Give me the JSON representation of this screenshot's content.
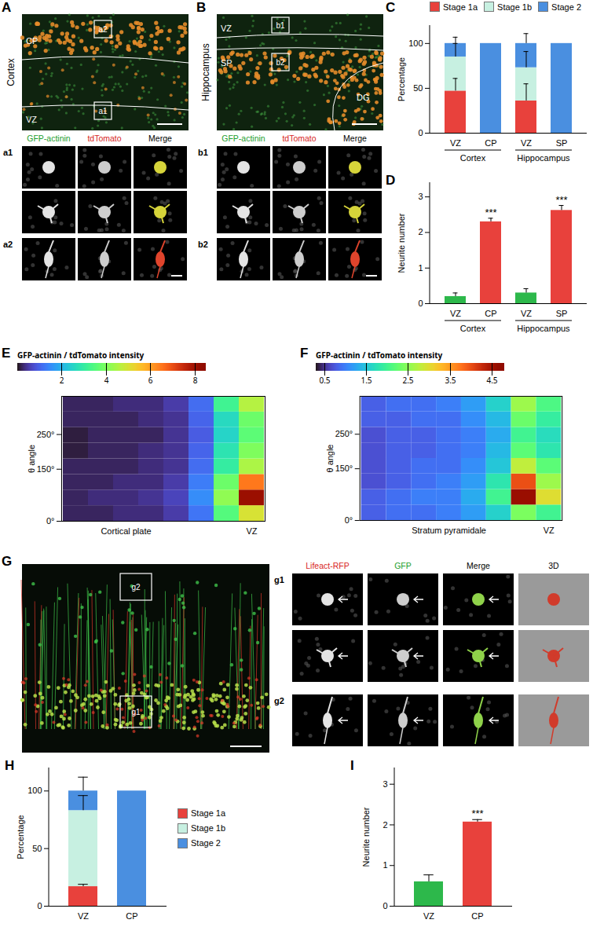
{
  "figure": {
    "image_panels": [
      {
        "title": "A",
        "side_label": "Cortex",
        "regions": [
          "CP",
          "VZ"
        ],
        "boxes": [
          "a2",
          "a1"
        ],
        "columns": [
          "GFP-actinin",
          "tdTomato",
          "Merge"
        ],
        "rows": [
          "a1",
          "a2"
        ]
      },
      {
        "title": "B",
        "side_label": "Hippocampus",
        "regions": [
          "VZ",
          "SP",
          "DG"
        ],
        "boxes": [
          "b1",
          "b2"
        ],
        "columns": [
          "GFP-actinin",
          "tdTomato",
          "Merge"
        ],
        "rows": [
          "b1",
          "b2"
        ]
      },
      {
        "title": "G",
        "boxes": [
          "g2",
          "g1"
        ],
        "columns": [
          "Lifeact-RFP",
          "GFP",
          "Merge",
          "3D"
        ],
        "rows": [
          "g1",
          "g2"
        ]
      }
    ]
  },
  "chart_data": [
    {
      "title": "C",
      "type": "bar",
      "stacked": true,
      "legend": "top",
      "categories": [
        "VZ",
        "CP",
        "VZ",
        "SP"
      ],
      "groups": [
        {
          "name": "Cortex",
          "size": 2
        },
        {
          "name": "Hippocampus",
          "size": 2
        }
      ],
      "y_label": "Percentage",
      "ylim": [
        0,
        120
      ],
      "yticks": [
        0,
        50,
        100
      ],
      "series": [
        {
          "name": "Stage 1a",
          "color": "#e8413c",
          "values": [
            47,
            0,
            36,
            0
          ],
          "errors": [
            14,
            null,
            19,
            null
          ]
        },
        {
          "name": "Stage 1b",
          "color": "#c7f0e1",
          "values": [
            38,
            0,
            37,
            0
          ],
          "errors": [
            15,
            null,
            18,
            null
          ]
        },
        {
          "name": "Stage 2",
          "color": "#4a8fe0",
          "values": [
            15,
            100,
            27,
            100
          ],
          "errors": [
            7,
            null,
            11,
            null
          ]
        }
      ]
    },
    {
      "title": "D",
      "type": "bar",
      "categories": [
        "VZ",
        "CP",
        "VZ",
        "SP"
      ],
      "groups": [
        {
          "name": "Cortex",
          "size": 2
        },
        {
          "name": "Hippocampus",
          "size": 2
        }
      ],
      "y_label": "Neurite number",
      "ylim": [
        0,
        3.4
      ],
      "yticks": [
        0,
        1,
        2,
        3
      ],
      "values": [
        0.2,
        2.3,
        0.3,
        2.62
      ],
      "errors": [
        0.1,
        0.1,
        0.12,
        0.14
      ],
      "colors": [
        "#2db84b",
        "#e8413c",
        "#2db84b",
        "#e8413c"
      ],
      "annotations": [
        null,
        "***",
        null,
        "***"
      ]
    },
    {
      "title": "E",
      "type": "heatmap",
      "categories": [
        null,
        null,
        "Cortical plate",
        null,
        null,
        null,
        null,
        "VZ"
      ],
      "y_label": "θ angle",
      "y": [
        0,
        45,
        90,
        135,
        180,
        225,
        270,
        315
      ],
      "ylim": [
        0,
        360
      ],
      "yticks": [
        {
          "value": 0,
          "label": "0°"
        },
        {
          "value": 150,
          "label": "150°"
        },
        {
          "value": 250,
          "label": "250°"
        }
      ],
      "z_label": "GFP-actinin / tdTomato intensity",
      "values": [
        [
          0.2,
          0.2,
          0.3,
          0.3,
          0.5,
          1.2,
          3.5,
          5.0
        ],
        [
          0.2,
          0.3,
          0.3,
          0.4,
          0.6,
          1.5,
          4.2,
          8.1
        ],
        [
          0.2,
          0.2,
          0.3,
          0.3,
          0.5,
          1.3,
          3.8,
          6.5
        ],
        [
          0.2,
          0.2,
          0.2,
          0.3,
          0.4,
          1.1,
          3.0,
          4.5
        ],
        [
          0.1,
          0.2,
          0.2,
          0.3,
          0.4,
          1.0,
          2.8,
          4.0
        ],
        [
          0.1,
          0.2,
          0.2,
          0.2,
          0.4,
          0.9,
          2.5,
          3.6
        ],
        [
          0.2,
          0.2,
          0.2,
          0.3,
          0.4,
          1.0,
          2.6,
          3.8
        ],
        [
          0.2,
          0.2,
          0.3,
          0.3,
          0.5,
          1.1,
          3.2,
          4.6
        ]
      ],
      "colorbar": {
        "range": [
          0,
          8.5
        ],
        "ticks": [
          2,
          4,
          6,
          8
        ]
      }
    },
    {
      "title": "F",
      "type": "heatmap",
      "categories": [
        null,
        null,
        null,
        "Stratum pyramidale",
        null,
        null,
        null,
        "VZ"
      ],
      "y_label": "θ angle",
      "y": [
        0,
        45,
        90,
        135,
        180,
        225,
        270,
        315
      ],
      "ylim": [
        0,
        360
      ],
      "yticks": [
        {
          "value": 0,
          "label": "0°"
        },
        {
          "value": 150,
          "label": "150°"
        },
        {
          "value": 250,
          "label": "250°"
        }
      ],
      "z_label": "GFP-actinin / tdTomato intensity",
      "values": [
        [
          0.8,
          0.9,
          0.9,
          1.0,
          1.2,
          1.6,
          2.4,
          2.0
        ],
        [
          0.8,
          0.9,
          1.0,
          1.0,
          1.3,
          2.0,
          4.6,
          3.0
        ],
        [
          0.7,
          0.8,
          0.9,
          1.0,
          1.2,
          1.8,
          4.0,
          2.6
        ],
        [
          0.7,
          0.8,
          0.9,
          0.9,
          1.1,
          1.5,
          2.8,
          2.2
        ],
        [
          0.7,
          0.8,
          0.8,
          0.9,
          1.0,
          1.4,
          2.2,
          1.8
        ],
        [
          0.7,
          0.8,
          0.8,
          0.9,
          1.0,
          1.3,
          2.0,
          1.7
        ],
        [
          0.8,
          0.8,
          0.9,
          0.9,
          1.1,
          1.4,
          2.3,
          1.9
        ],
        [
          0.8,
          0.9,
          0.9,
          1.0,
          1.2,
          1.6,
          2.6,
          2.1
        ]
      ],
      "colorbar": {
        "range": [
          0.3,
          4.8
        ],
        "ticks": [
          0.5,
          1.5,
          2.5,
          3.5,
          4.5
        ]
      }
    },
    {
      "title": "H",
      "type": "bar",
      "stacked": true,
      "legend": "right",
      "categories": [
        "VZ",
        "CP"
      ],
      "y_label": "Percentage",
      "ylim": [
        0,
        120
      ],
      "yticks": [
        0,
        50,
        100
      ],
      "series": [
        {
          "name": "Stage 1a",
          "color": "#e8413c",
          "values": [
            17,
            0
          ],
          "errors": [
            2,
            null
          ]
        },
        {
          "name": "Stage 1b",
          "color": "#c7f0e1",
          "values": [
            66,
            0
          ],
          "errors": [
            13,
            null
          ]
        },
        {
          "name": "Stage 2",
          "color": "#4a8fe0",
          "values": [
            17,
            100
          ],
          "errors": [
            12,
            null
          ]
        }
      ]
    },
    {
      "title": "I",
      "type": "bar",
      "categories": [
        "VZ",
        "CP"
      ],
      "y_label": "Neurite number",
      "ylim": [
        0,
        3.4
      ],
      "yticks": [
        0,
        1,
        2,
        3
      ],
      "values": [
        0.6,
        2.07
      ],
      "errors": [
        0.17,
        0.06
      ],
      "colors": [
        "#2db84b",
        "#e8413c"
      ],
      "annotations": [
        null,
        "***"
      ]
    }
  ]
}
